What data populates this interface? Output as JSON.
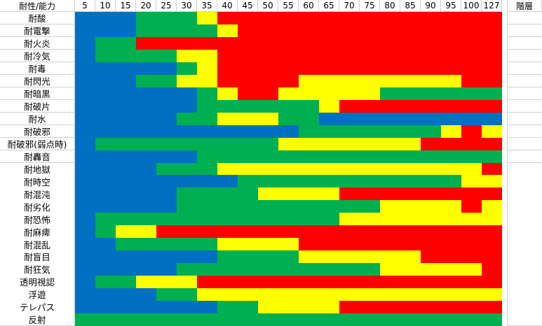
{
  "header": {
    "corner": "耐性/能力",
    "floor": "階層",
    "levels": [
      "5",
      "10",
      "15",
      "20",
      "25",
      "30",
      "35",
      "40",
      "45",
      "50",
      "55",
      "60",
      "65",
      "70",
      "75",
      "80",
      "85",
      "90",
      "95",
      "100",
      "127"
    ]
  },
  "colors": {
    "B": "#0070c0",
    "G": "#00b050",
    "Y": "#ffff00",
    "R": "#ff0000"
  },
  "rows": [
    {
      "label": "耐酸",
      "cells": "BBBGGGYRRRRRRRRRRRRRR"
    },
    {
      "label": "耐電撃",
      "cells": "BBBGGGGYRRRRRRRRRRRRR"
    },
    {
      "label": "耐火炎",
      "cells": "BGGRRRRRRRRRRRRRRRRRR"
    },
    {
      "label": "耐冷気",
      "cells": "BGGGGYYRRRRRRRRRRRRRR"
    },
    {
      "label": "耐毒",
      "cells": "BBBBBGYRRRRRRRRRRRRRR"
    },
    {
      "label": "耐閃光",
      "cells": "BBBGGYYRRRRYYYYYYYYRR"
    },
    {
      "label": "耐暗黒",
      "cells": "BBBBBBGYRRYYYYYGGGGGG"
    },
    {
      "label": "耐破片",
      "cells": "BBBBBBGGGGGGYRRRRRRRR"
    },
    {
      "label": "耐水",
      "cells": "BBBBBGGYYYGGBBBBBBBBB"
    },
    {
      "label": "耐破邪",
      "cells": "BBBBBBBBBBBGGGGGGGYRY"
    },
    {
      "label": "耐破邪(弱点時)",
      "cells": "BGGGGGGGGGYYYYYYYRRRR"
    },
    {
      "label": "耐轟音",
      "cells": "BBBBBBGGGGGGGGGGGGGGG"
    },
    {
      "label": "耐地獄",
      "cells": "BBBBGGGYYYYYYYYYYYYYR"
    },
    {
      "label": "耐時空",
      "cells": "BBBBBBBBGGGGGGGGGGGYY"
    },
    {
      "label": "耐混沌",
      "cells": "BBBBBGGGGYYYYRRRRRRRR"
    },
    {
      "label": "耐劣化",
      "cells": "BBBBBGGGGGGGGGGYYYYRY"
    },
    {
      "label": "耐恐怖",
      "cells": "BGGGGGGGGGGGGYYYYYYYY"
    },
    {
      "label": "耐麻痺",
      "cells": "BGYYRRRRRRRRRRRRRRRRR"
    },
    {
      "label": "耐混乱",
      "cells": "BBGGGGGYYYYRRRRRRRRRR"
    },
    {
      "label": "耐盲目",
      "cells": "BBBBBBBGGGGYYYYYYRRRR"
    },
    {
      "label": "耐狂気",
      "cells": "BBBBBGGGGGGGGGGYYYYYR"
    },
    {
      "label": "透明視認",
      "cells": "BGGYYYRRRRRRRRRRRRRRR"
    },
    {
      "label": "浮遊",
      "cells": "BBBBGGYYYYYYYYYYYYYYY"
    },
    {
      "label": "テレパス",
      "cells": "BBBBBBBGGYYYYRRRRRRRR"
    },
    {
      "label": "反射",
      "cells": "GGGGGGGGGGGGGGGGGGGGG"
    }
  ]
}
